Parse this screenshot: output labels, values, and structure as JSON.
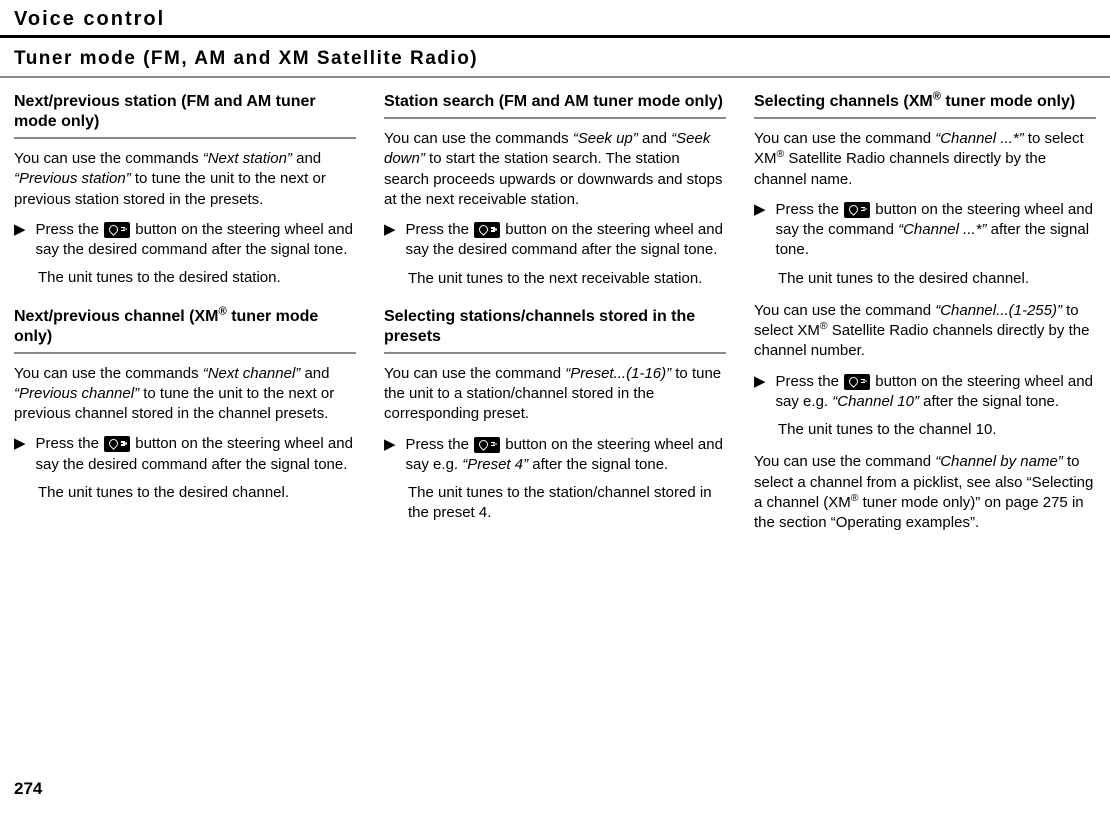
{
  "pageHeader": "Voice control",
  "sectionTitle": "Tuner mode (FM, AM and XM Satellite Radio)",
  "pageNumber": "274",
  "col1": {
    "sub1": {
      "title": "Next/previous station (FM and AM tuner mode only)",
      "intro_a": "You can use the commands ",
      "intro_cmd1": "“Next station”",
      "intro_b": " and ",
      "intro_cmd2": "“Previous station”",
      "intro_c": " to tune the unit to the next or previous station stored in the presets.",
      "step_a": "Press the ",
      "step_b": " button on the steering wheel and say the desired command after the signal tone.",
      "result": "The unit tunes to the desired station."
    },
    "sub2": {
      "title_a": "Next/previous channel (XM",
      "title_b": " tuner mode only)",
      "intro_a": "You can use the commands ",
      "intro_cmd1": "“Next channel”",
      "intro_b": " and ",
      "intro_cmd2": "“Previous channel”",
      "intro_c": " to tune the unit to the next or previous channel stored in the channel presets.",
      "step_a": "Press the ",
      "step_b": " button on the steering wheel and say the desired command after the signal tone.",
      "result": "The unit tunes to the desired channel."
    }
  },
  "col2": {
    "sub1": {
      "title": "Station search (FM and AM tuner mode only)",
      "intro_a": "You can use the commands ",
      "intro_cmd1": "“Seek up”",
      "intro_b": " and ",
      "intro_cmd2": "“Seek down”",
      "intro_c": " to start the station search. The station search proceeds upwards or downwards and stops at the next receivable station.",
      "step_a": "Press the ",
      "step_b": " button on the steering wheel and say the desired command after the signal tone.",
      "result": "The unit tunes to the next receivable station."
    },
    "sub2": {
      "title": "Selecting stations/channels stored in the presets",
      "intro_a": "You can use the command ",
      "intro_cmd1": "“Preset...(1-16)”",
      "intro_b": " to tune the unit to a station/channel stored in the corresponding preset.",
      "step_a": "Press the ",
      "step_b": " button on the steering wheel and say e.g. ",
      "step_cmd": "“Preset 4”",
      "step_c": " after the signal tone.",
      "result": "The unit tunes to the station/channel stored in the preset 4."
    }
  },
  "col3": {
    "sub1": {
      "title_a": "Selecting channels (XM",
      "title_b": " tuner mode only)",
      "intro1_a": "You can use the command ",
      "intro1_cmd": "“Channel ...*”",
      "intro1_b": " to select XM",
      "intro1_c": " Satellite Radio channels directly by the channel name.",
      "step1_a": "Press the ",
      "step1_b": " button on the steering wheel and say the command ",
      "step1_cmd": "“Channel ...*”",
      "step1_c": " after the signal tone.",
      "result1": "The unit tunes to the desired channel.",
      "intro2_a": "You can use the command ",
      "intro2_cmd": "“Channel...(1-255)”",
      "intro2_b": " to select XM",
      "intro2_c": " Satellite Radio channels directly by the channel number.",
      "step2_a": "Press the ",
      "step2_b": " button on the steering wheel and say e.g. ",
      "step2_cmd": "“Channel 10”",
      "step2_c": " after the signal tone.",
      "result2": "The unit tunes to the channel 10.",
      "intro3_a": "You can use the command ",
      "intro3_cmd": "“Channel by name”",
      "intro3_b": " to select a channel from a picklist, see also “Selecting a channel (XM",
      "intro3_c": " tuner mode only)” on page 275 in the section “Operating examples”."
    }
  },
  "reg": "®",
  "triangle": "▶"
}
